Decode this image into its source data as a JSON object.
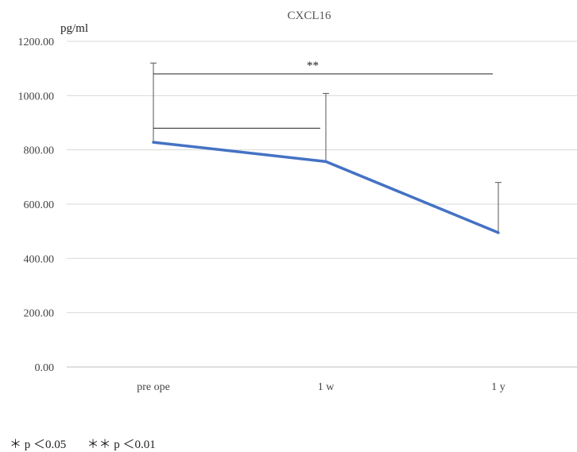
{
  "chart_data": {
    "type": "line",
    "title": "CXCL16",
    "ylabel": "pg/ml",
    "xlabel": "",
    "categories": [
      "pre ope",
      "1 w",
      "1 y"
    ],
    "series": [
      {
        "values": [
          828,
          757,
          495
        ],
        "error_upper": [
          1120,
          1008,
          680
        ]
      }
    ],
    "ylim": [
      0,
      1200
    ],
    "yticks": [
      "0.00",
      "200.00",
      "400.00",
      "600.00",
      "800.00",
      "1000.00",
      "1200.00"
    ],
    "grid": true,
    "legend": "none",
    "line_color": "#4472C4",
    "annotations": [
      {
        "label": "",
        "from": "pre ope",
        "to": "1 w"
      },
      {
        "label": "**",
        "from": "pre ope",
        "to": "1 y"
      }
    ]
  },
  "footnote": "＊ p ＜0.05       ＊＊ p ＜0.01"
}
